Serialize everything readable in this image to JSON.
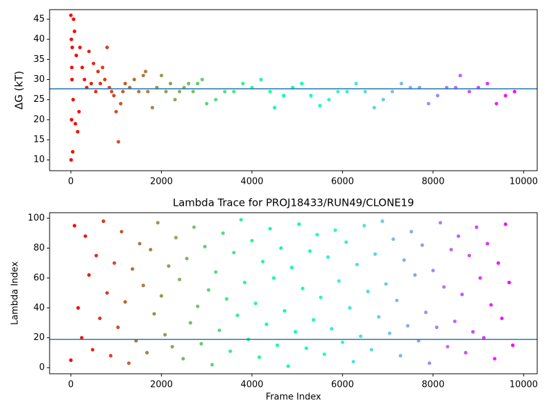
{
  "chart_data": [
    {
      "type": "scatter",
      "ylabel": "ΔG (kT)",
      "colormap": "rainbow_r",
      "hline": 27.7,
      "hline_color": "#1f77b4",
      "xlim": [
        -470,
        10300
      ],
      "ylim": [
        7.3,
        47.4
      ],
      "xticks": [
        0,
        2000,
        4000,
        6000,
        8000,
        10000
      ],
      "yticks": [
        10,
        15,
        20,
        25,
        30,
        35,
        40,
        45
      ],
      "x": [
        0,
        5,
        10,
        15,
        20,
        25,
        30,
        40,
        50,
        60,
        80,
        100,
        120,
        150,
        180,
        200,
        250,
        300,
        350,
        400,
        450,
        500,
        550,
        600,
        650,
        700,
        750,
        800,
        850,
        900,
        950,
        1000,
        1050,
        1100,
        1150,
        1200,
        1300,
        1400,
        1500,
        1600,
        1650,
        1700,
        1800,
        1900,
        2000,
        2100,
        2200,
        2300,
        2400,
        2500,
        2600,
        2700,
        2800,
        2900,
        3000,
        3200,
        3400,
        3600,
        3800,
        4000,
        4200,
        4400,
        4500,
        4700,
        4900,
        5100,
        5300,
        5500,
        5700,
        5900,
        6100,
        6300,
        6500,
        6700,
        6900,
        7100,
        7300,
        7500,
        7700,
        7900,
        8100,
        8300,
        8500,
        8600,
        8800,
        9000,
        9200,
        9400,
        9600,
        9800
      ],
      "values": [
        46,
        10,
        40,
        20,
        33,
        30,
        38,
        12,
        25,
        45,
        42,
        19,
        36,
        17,
        22,
        38,
        33,
        30,
        28,
        37,
        29,
        34,
        27,
        32,
        29,
        33,
        30,
        38,
        28,
        27,
        26,
        22,
        14.5,
        24,
        27,
        29,
        28,
        30,
        27,
        31,
        32,
        27,
        23,
        28,
        31,
        27,
        29,
        25,
        27,
        28,
        29,
        27,
        29,
        30,
        24,
        25,
        27,
        27,
        29,
        28,
        30,
        27,
        23,
        26,
        28,
        29,
        26,
        23.5,
        25,
        27,
        27,
        29,
        27,
        23,
        25,
        27,
        29,
        28,
        28,
        24,
        26,
        28,
        28,
        31,
        27,
        28,
        29,
        24,
        26,
        27
      ]
    },
    {
      "type": "scatter",
      "title": "Lambda Trace for PROJ18433/RUN49/CLONE19",
      "xlabel": "Frame Index",
      "ylabel": "Lambda Index",
      "colormap": "rainbow_r",
      "hline": 18.9,
      "hline_color": "#1f77b4",
      "xlim": [
        -470,
        10300
      ],
      "ylim": [
        -4.1,
        103.7
      ],
      "xticks": [
        0,
        2000,
        4000,
        6000,
        8000,
        10000
      ],
      "yticks": [
        0,
        20,
        40,
        60,
        80,
        100
      ],
      "x": [
        0,
        80,
        160,
        240,
        320,
        400,
        480,
        560,
        640,
        720,
        800,
        880,
        960,
        1040,
        1120,
        1200,
        1280,
        1360,
        1440,
        1520,
        1600,
        1680,
        1760,
        1840,
        1920,
        2000,
        2080,
        2160,
        2240,
        2320,
        2400,
        2480,
        2560,
        2640,
        2720,
        2800,
        2880,
        2960,
        3040,
        3120,
        3200,
        3280,
        3360,
        3440,
        3520,
        3600,
        3680,
        3760,
        3840,
        3920,
        4000,
        4080,
        4160,
        4240,
        4320,
        4400,
        4480,
        4560,
        4640,
        4720,
        4800,
        4880,
        4960,
        5040,
        5120,
        5200,
        5280,
        5360,
        5440,
        5520,
        5600,
        5680,
        5760,
        5840,
        5920,
        6000,
        6080,
        6160,
        6240,
        6320,
        6400,
        6480,
        6560,
        6640,
        6720,
        6800,
        6880,
        6960,
        7040,
        7120,
        7200,
        7280,
        7360,
        7440,
        7520,
        7600,
        7680,
        7760,
        7840,
        7920,
        8000,
        8080,
        8160,
        8240,
        8320,
        8400,
        8480,
        8560,
        8640,
        8720,
        8800,
        8880,
        8960,
        9040,
        9120,
        9200,
        9280,
        9360,
        9440,
        9520,
        9600,
        9680,
        9760
      ],
      "values": [
        5,
        95,
        40,
        20,
        88,
        62,
        12,
        75,
        33,
        98,
        50,
        8,
        70,
        27,
        91,
        44,
        3,
        66,
        18,
        83,
        55,
        10,
        79,
        36,
        97,
        48,
        22,
        68,
        14,
        87,
        59,
        6,
        73,
        30,
        94,
        41,
        16,
        81,
        52,
        2,
        64,
        25,
        90,
        46,
        11,
        77,
        35,
        99,
        57,
        19,
        85,
        43,
        7,
        71,
        29,
        93,
        60,
        15,
        80,
        38,
        1,
        67,
        24,
        96,
        53,
        13,
        78,
        32,
        89,
        47,
        9,
        74,
        26,
        92,
        58,
        17,
        84,
        40,
        4,
        69,
        21,
        95,
        51,
        12,
        76,
        34,
        98,
        56,
        23,
        86,
        45,
        8,
        72,
        28,
        91,
        62,
        18,
        82,
        37,
        3,
        65,
        27,
        97,
        54,
        14,
        79,
        31,
        88,
        49,
        10,
        75,
        24,
        94,
        60,
        20,
        83,
        42,
        6,
        70,
        33,
        96,
        57,
        15
      ]
    }
  ]
}
